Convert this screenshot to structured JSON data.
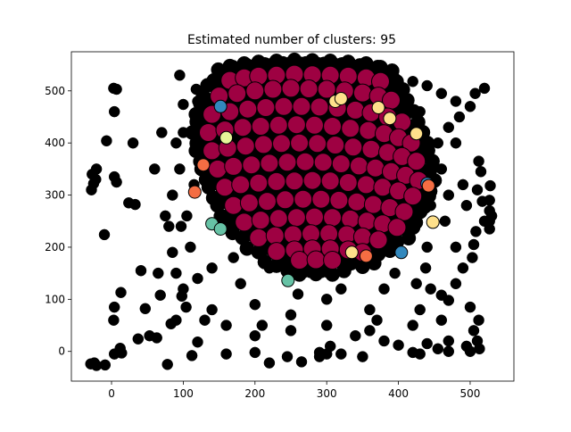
{
  "chart_data": {
    "type": "scatter",
    "title": "Estimated number of clusters: 95",
    "xlabel": "",
    "ylabel": "",
    "xlim": [
      -56,
      561
    ],
    "ylim": [
      -57,
      575
    ],
    "x_ticks": [
      0,
      100,
      200,
      300,
      400,
      500
    ],
    "y_ticks": [
      0,
      100,
      200,
      300,
      400,
      500
    ],
    "grid": false,
    "legend": "none",
    "description_note_excluded": true,
    "series": [
      {
        "role": "core",
        "color": "#9e0142",
        "marker": "large",
        "points": [
          [
            165,
            520
          ],
          [
            185,
            525
          ],
          [
            205,
            528
          ],
          [
            230,
            530
          ],
          [
            255,
            532
          ],
          [
            280,
            531
          ],
          [
            305,
            530
          ],
          [
            330,
            528
          ],
          [
            355,
            525
          ],
          [
            375,
            518
          ],
          [
            150,
            490
          ],
          [
            175,
            495
          ],
          [
            200,
            500
          ],
          [
            225,
            503
          ],
          [
            250,
            505
          ],
          [
            275,
            504
          ],
          [
            300,
            503
          ],
          [
            325,
            500
          ],
          [
            350,
            496
          ],
          [
            372,
            490
          ],
          [
            390,
            482
          ],
          [
            140,
            455
          ],
          [
            165,
            460
          ],
          [
            190,
            465
          ],
          [
            215,
            468
          ],
          [
            240,
            470
          ],
          [
            265,
            470
          ],
          [
            290,
            469
          ],
          [
            315,
            467
          ],
          [
            340,
            463
          ],
          [
            362,
            458
          ],
          [
            385,
            450
          ],
          [
            405,
            440
          ],
          [
            135,
            420
          ],
          [
            158,
            425
          ],
          [
            183,
            430
          ],
          [
            208,
            432
          ],
          [
            233,
            434
          ],
          [
            258,
            435
          ],
          [
            283,
            434
          ],
          [
            308,
            432
          ],
          [
            333,
            428
          ],
          [
            358,
            424
          ],
          [
            380,
            418
          ],
          [
            400,
            410
          ],
          [
            418,
            400
          ],
          [
            140,
            385
          ],
          [
            162,
            390
          ],
          [
            187,
            394
          ],
          [
            212,
            397
          ],
          [
            237,
            399
          ],
          [
            262,
            400
          ],
          [
            287,
            399
          ],
          [
            312,
            396
          ],
          [
            337,
            392
          ],
          [
            362,
            388
          ],
          [
            385,
            382
          ],
          [
            405,
            374
          ],
          [
            425,
            365
          ],
          [
            148,
            350
          ],
          [
            170,
            355
          ],
          [
            195,
            358
          ],
          [
            220,
            361
          ],
          [
            245,
            363
          ],
          [
            270,
            364
          ],
          [
            295,
            363
          ],
          [
            320,
            360
          ],
          [
            345,
            356
          ],
          [
            368,
            352
          ],
          [
            390,
            345
          ],
          [
            410,
            338
          ],
          [
            428,
            328
          ],
          [
            158,
            315
          ],
          [
            180,
            320
          ],
          [
            205,
            323
          ],
          [
            230,
            326
          ],
          [
            255,
            327
          ],
          [
            280,
            328
          ],
          [
            305,
            327
          ],
          [
            330,
            324
          ],
          [
            355,
            320
          ],
          [
            378,
            315
          ],
          [
            400,
            308
          ],
          [
            420,
            298
          ],
          [
            170,
            280
          ],
          [
            192,
            285
          ],
          [
            217,
            288
          ],
          [
            242,
            291
          ],
          [
            267,
            292
          ],
          [
            292,
            292
          ],
          [
            317,
            290
          ],
          [
            342,
            287
          ],
          [
            365,
            282
          ],
          [
            388,
            276
          ],
          [
            408,
            268
          ],
          [
            185,
            248
          ],
          [
            208,
            252
          ],
          [
            233,
            255
          ],
          [
            258,
            257
          ],
          [
            283,
            258
          ],
          [
            308,
            257
          ],
          [
            333,
            254
          ],
          [
            356,
            250
          ],
          [
            378,
            245
          ],
          [
            398,
            238
          ],
          [
            205,
            218
          ],
          [
            228,
            222
          ],
          [
            253,
            224
          ],
          [
            278,
            226
          ],
          [
            303,
            226
          ],
          [
            328,
            224
          ],
          [
            350,
            220
          ],
          [
            372,
            214
          ],
          [
            230,
            192
          ],
          [
            255,
            195
          ],
          [
            280,
            197
          ],
          [
            305,
            197
          ],
          [
            330,
            195
          ],
          [
            350,
            190
          ],
          [
            262,
            175
          ],
          [
            285,
            176
          ],
          [
            308,
            175
          ]
        ]
      },
      {
        "role": "minor-clusters",
        "colors": [
          "#fee08b",
          "#3288bd",
          "#66c2a5",
          "#f46d43",
          "#e6f598"
        ],
        "points": [
          [
            152,
            470,
            "#3288bd"
          ],
          [
            312,
            480,
            "#fee08b"
          ],
          [
            320,
            485,
            "#fee08b"
          ],
          [
            372,
            468,
            "#fee08b"
          ],
          [
            388,
            447,
            "#fee08b"
          ],
          [
            440,
            322,
            "#3288bd"
          ],
          [
            442,
            318,
            "#f46d43"
          ],
          [
            128,
            358,
            "#f46d43"
          ],
          [
            140,
            245,
            "#66c2a5"
          ],
          [
            152,
            235,
            "#66c2a5"
          ],
          [
            246,
            136,
            "#66c2a5"
          ],
          [
            355,
            183,
            "#f46d43"
          ],
          [
            335,
            190,
            "#fee08b"
          ],
          [
            448,
            248,
            "#fee08b"
          ],
          [
            404,
            190,
            "#3288bd"
          ],
          [
            160,
            410,
            "#e6f598"
          ],
          [
            116,
            306,
            "#f46d43"
          ],
          [
            425,
            418,
            "#fee08b"
          ]
        ]
      },
      {
        "role": "noise",
        "color": "#000000",
        "marker": "small",
        "points": [
          [
            -29,
            -24
          ],
          [
            -24,
            -22
          ],
          [
            -21,
            -27
          ],
          [
            -9,
            -26
          ],
          [
            4,
            -5
          ],
          [
            12,
            6
          ],
          [
            14,
            -3
          ],
          [
            3,
            60
          ],
          [
            4,
            85
          ],
          [
            13,
            113
          ],
          [
            -10,
            224
          ],
          [
            -28,
            310
          ],
          [
            -25,
            322
          ],
          [
            -22,
            330
          ],
          [
            -27,
            340
          ],
          [
            -21,
            350
          ],
          [
            4,
            335
          ],
          [
            7,
            325
          ],
          [
            4,
            460
          ],
          [
            3,
            505
          ],
          [
            7,
            503
          ],
          [
            -7,
            404
          ],
          [
            30,
            400
          ],
          [
            33,
            282
          ],
          [
            24,
            285
          ],
          [
            41,
            155
          ],
          [
            37,
            24
          ],
          [
            47,
            82
          ],
          [
            53,
            30
          ],
          [
            63,
            26
          ],
          [
            68,
            108
          ],
          [
            78,
            -25
          ],
          [
            83,
            53
          ],
          [
            112,
            -8
          ],
          [
            98,
            106
          ],
          [
            104,
            85
          ],
          [
            120,
            18
          ],
          [
            160,
            -5
          ],
          [
            200,
            -2
          ],
          [
            220,
            -22
          ],
          [
            245,
            -10
          ],
          [
            265,
            -20
          ],
          [
            290,
            -2
          ],
          [
            300,
            -5
          ],
          [
            305,
            10
          ],
          [
            95,
            530
          ],
          [
            100,
            474
          ],
          [
            118,
            503
          ],
          [
            160,
            540
          ],
          [
            190,
            517
          ],
          [
            220,
            530
          ],
          [
            260,
            545
          ],
          [
            280,
            535
          ],
          [
            300,
            520
          ],
          [
            330,
            540
          ],
          [
            360,
            548
          ],
          [
            395,
            525
          ],
          [
            420,
            518
          ],
          [
            440,
            510
          ],
          [
            460,
            495
          ],
          [
            480,
            480
          ],
          [
            500,
            470
          ],
          [
            520,
            505
          ],
          [
            507,
            495
          ],
          [
            512,
            365
          ],
          [
            515,
            345
          ],
          [
            510,
            310
          ],
          [
            517,
            288
          ],
          [
            520,
            250
          ],
          [
            527,
            235
          ],
          [
            528,
            318
          ],
          [
            527,
            290
          ],
          [
            527,
            270
          ],
          [
            530,
            260
          ],
          [
            527,
            250
          ],
          [
            505,
            205
          ],
          [
            508,
            230
          ],
          [
            503,
            180
          ],
          [
            490,
            160
          ],
          [
            480,
            130
          ],
          [
            460,
            108
          ],
          [
            445,
            120
          ],
          [
            470,
            98
          ],
          [
            500,
            85
          ],
          [
            512,
            60
          ],
          [
            505,
            40
          ],
          [
            510,
            20
          ],
          [
            495,
            10
          ],
          [
            513,
            5
          ],
          [
            500,
            0
          ],
          [
            470,
            0
          ],
          [
            455,
            5
          ],
          [
            440,
            15
          ],
          [
            430,
            -5
          ],
          [
            420,
            -2
          ],
          [
            400,
            12
          ],
          [
            380,
            20
          ],
          [
            360,
            40
          ],
          [
            340,
            30
          ],
          [
            320,
            -5
          ],
          [
            350,
            -10
          ],
          [
            290,
            -10
          ],
          [
            140,
            80
          ],
          [
            130,
            60
          ],
          [
            160,
            50
          ],
          [
            200,
            30
          ],
          [
            250,
            40
          ],
          [
            300,
            50
          ],
          [
            420,
            50
          ],
          [
            90,
            150
          ],
          [
            85,
            190
          ],
          [
            80,
            240
          ],
          [
            85,
            300
          ],
          [
            95,
            350
          ],
          [
            90,
            400
          ],
          [
            100,
            420
          ],
          [
            60,
            350
          ],
          [
            70,
            420
          ],
          [
            120,
            140
          ],
          [
            440,
            200
          ],
          [
            465,
            250
          ],
          [
            470,
            300
          ],
          [
            460,
            350
          ],
          [
            455,
            400
          ],
          [
            470,
            430
          ],
          [
            480,
            400
          ],
          [
            490,
            320
          ],
          [
            495,
            280
          ],
          [
            430,
            460
          ],
          [
            150,
            500
          ],
          [
            360,
            80
          ],
          [
            300,
            100
          ],
          [
            200,
            90
          ],
          [
            250,
            70
          ],
          [
            110,
            200
          ],
          [
            105,
            260
          ],
          [
            115,
            320
          ],
          [
            125,
            380
          ],
          [
            120,
            440
          ],
          [
            438,
            160
          ],
          [
            445,
            280
          ],
          [
            425,
            130
          ],
          [
            180,
            130
          ],
          [
            320,
            120
          ],
          [
            380,
            120
          ],
          [
            260,
            110
          ],
          [
            220,
            160
          ],
          [
            170,
            180
          ],
          [
            150,
            260
          ],
          [
            145,
            320
          ],
          [
            410,
            250
          ],
          [
            395,
            150
          ],
          [
            100,
            120
          ],
          [
            210,
            50
          ],
          [
            370,
            60
          ],
          [
            460,
            60
          ],
          [
            480,
            200
          ],
          [
            485,
            450
          ],
          [
            97,
            240
          ],
          [
            75,
            260
          ],
          [
            65,
            150
          ],
          [
            140,
            160
          ],
          [
            400,
            470
          ],
          [
            340,
            510
          ],
          [
            240,
            510
          ],
          [
            200,
            480
          ],
          [
            120,
            480
          ],
          [
            470,
            20
          ],
          [
            430,
            80
          ],
          [
            90,
            60
          ]
        ]
      }
    ]
  }
}
